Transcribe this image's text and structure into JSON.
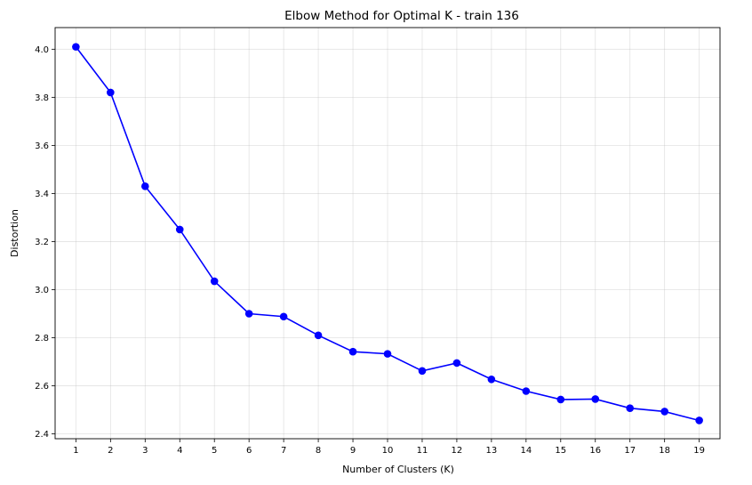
{
  "chart_data": {
    "type": "line",
    "title": "Elbow Method for Optimal K - train 136",
    "xlabel": "Number of Clusters (K)",
    "ylabel": "Distortion",
    "x": [
      1,
      2,
      3,
      4,
      5,
      6,
      7,
      8,
      9,
      10,
      11,
      12,
      13,
      14,
      15,
      16,
      17,
      18,
      19
    ],
    "xticks": [
      "1",
      "2",
      "3",
      "4",
      "5",
      "6",
      "7",
      "8",
      "9",
      "10",
      "11",
      "12",
      "13",
      "14",
      "15",
      "16",
      "17",
      "18",
      "19"
    ],
    "y": [
      4.01,
      3.82,
      3.43,
      3.25,
      3.035,
      2.9,
      2.888,
      2.81,
      2.742,
      2.733,
      2.662,
      2.695,
      2.627,
      2.578,
      2.543,
      2.545,
      2.507,
      2.493,
      2.456
    ],
    "yticks": [
      "2.4",
      "2.6",
      "2.8",
      "3.0",
      "3.2",
      "3.4",
      "3.6",
      "3.8",
      "4.0"
    ],
    "ytick_values": [
      2.4,
      2.6,
      2.8,
      3.0,
      3.2,
      3.4,
      3.6,
      3.8,
      4.0
    ],
    "xlim": [
      0.4,
      19.6
    ],
    "ylim": [
      2.38,
      4.09
    ],
    "grid": true,
    "line_color": "#0000ff",
    "marker": "circle"
  }
}
